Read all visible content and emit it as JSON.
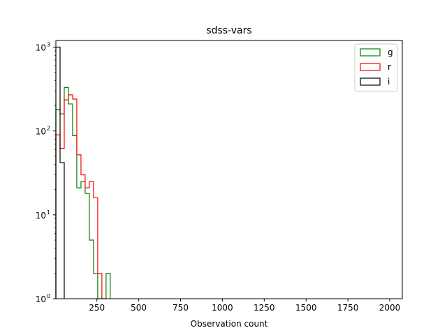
{
  "chart_data": {
    "type": "histogram",
    "title": "sdss-vars",
    "xlabel": "Observation count",
    "ylabel": "",
    "xlim": [
      5,
      2075
    ],
    "ylim": [
      1,
      1200
    ],
    "yscale": "log",
    "x_ticks": [
      250,
      500,
      750,
      1000,
      1250,
      1500,
      1750,
      2000
    ],
    "x_tick_labels": [
      "250",
      "500",
      "750",
      "1000",
      "1250",
      "1500",
      "1750",
      "2000"
    ],
    "y_ticks": [
      1,
      10,
      100,
      1000
    ],
    "y_tick_labels": [
      "10",
      "10",
      "10",
      "10"
    ],
    "y_tick_exponents": [
      "0",
      "1",
      "2",
      "3"
    ],
    "grid": false,
    "legend_position": "top-right",
    "series": [
      {
        "name": "g",
        "color": "#008000",
        "edges": [
          5,
          30,
          55,
          80,
          105,
          130,
          155,
          180,
          205,
          230,
          255,
          280,
          305,
          330
        ],
        "counts": [
          180,
          160,
          330,
          210,
          88,
          21,
          25,
          18,
          5,
          2,
          0,
          0,
          2
        ]
      },
      {
        "name": "r",
        "color": "#ff0000",
        "edges": [
          5,
          30,
          55,
          80,
          105,
          130,
          155,
          180,
          205,
          230,
          255,
          280
        ],
        "counts": [
          90,
          62,
          235,
          270,
          240,
          52,
          30,
          21,
          25,
          16,
          2
        ]
      },
      {
        "name": "i",
        "color": "#000000",
        "edges": [
          5,
          30,
          55
        ],
        "counts": [
          1000,
          42
        ]
      }
    ]
  }
}
